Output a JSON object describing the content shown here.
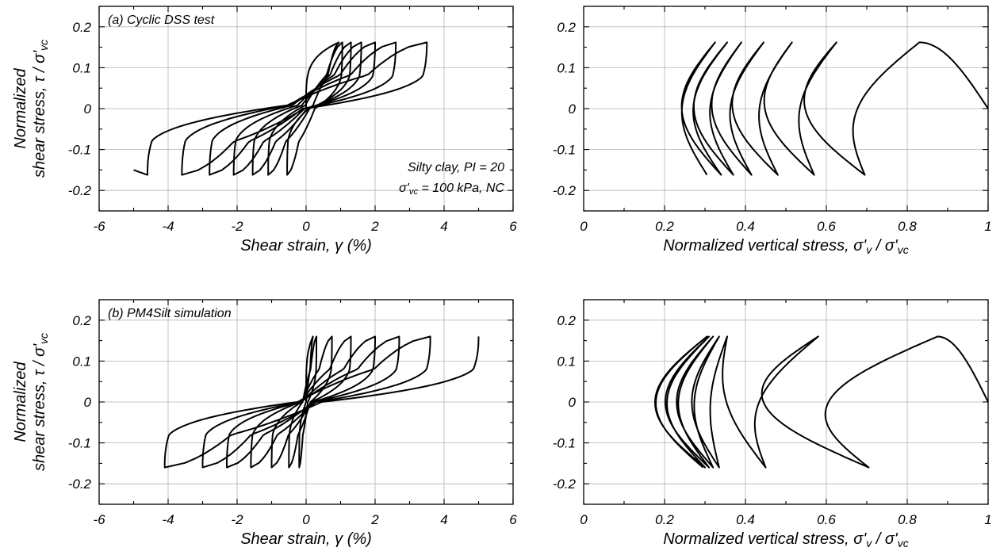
{
  "chart_data": [
    {
      "type": "line",
      "panel": "top-left",
      "title": "(a) Cyclic DSS test",
      "xlabel": "Shear strain, γ (%)",
      "ylabel": [
        "Normalized",
        "shear stress, τ / σ'vc"
      ],
      "xlim": [
        -6,
        6
      ],
      "ylim": [
        -0.25,
        0.25
      ],
      "xticks": [
        -6,
        -4,
        -2,
        0,
        2,
        4,
        6
      ],
      "xtick_labels": [
        "-6",
        "-4",
        "-2",
        "0",
        "2",
        "4",
        "6"
      ],
      "yticks": [
        -0.2,
        -0.1,
        0,
        0.1,
        0.2
      ],
      "ytick_labels": [
        "-0.2",
        "-0.1",
        "0",
        "0.1",
        "0.2"
      ],
      "grid": true,
      "annotation": [
        "Silty clay, PI = 20",
        "σ'vc = 100 kPa, NC"
      ],
      "series": [
        {
          "kind": "loops",
          "x0": 0,
          "tau": 0.162,
          "ymid": 0.02,
          "pos": [
            0.95,
            1.05,
            1.3,
            1.6,
            2.0,
            2.6,
            3.5
          ],
          "neg": [
            -0.55,
            -1.1,
            -1.55,
            -2.1,
            -2.8,
            -3.6,
            -4.6
          ],
          "end": -5.0
        }
      ]
    },
    {
      "type": "line",
      "panel": "top-right",
      "title": "",
      "xlabel": "Normalized vertical stress, σ'v / σ'vc",
      "ylabel": [],
      "xlim": [
        0,
        1
      ],
      "ylim": [
        -0.25,
        0.25
      ],
      "xticks": [
        0,
        0.2,
        0.4,
        0.6,
        0.8,
        1
      ],
      "xtick_labels": [
        "0",
        "0.2",
        "0.4",
        "0.6",
        "0.8",
        "1"
      ],
      "yticks": [
        -0.2,
        -0.1,
        0,
        0.1,
        0.2
      ],
      "ytick_labels": [
        "-0.2",
        "-0.1",
        "0",
        "0.1",
        "0.2"
      ],
      "grid": true,
      "series": [
        {
          "kind": "path",
          "tau": 0.162,
          "peaks_pos": [
            0.83,
            0.625,
            0.515,
            0.445,
            0.39,
            0.355,
            0.325
          ],
          "peaks_neg": [
            0.695,
            0.57,
            0.48,
            0.415,
            0.37,
            0.34,
            0.305
          ],
          "bulge_left": [
            0.6,
            0.5,
            0.41,
            0.34,
            0.295,
            0.255,
            0.225
          ],
          "start": 1.0
        }
      ]
    },
    {
      "type": "line",
      "panel": "bottom-left",
      "title": "(b) PM4Silt simulation",
      "xlabel": "Shear strain, γ (%)",
      "ylabel": [
        "Normalized",
        "shear stress, τ / σ'vc"
      ],
      "xlim": [
        -6,
        6
      ],
      "ylim": [
        -0.25,
        0.25
      ],
      "xticks": [
        -6,
        -4,
        -2,
        0,
        2,
        4,
        6
      ],
      "xtick_labels": [
        "-6",
        "-4",
        "-2",
        "0",
        "2",
        "4",
        "6"
      ],
      "yticks": [
        -0.2,
        -0.1,
        0,
        0.1,
        0.2
      ],
      "ytick_labels": [
        "-0.2",
        "-0.1",
        "0",
        "0.1",
        "0.2"
      ],
      "grid": true,
      "series": [
        {
          "kind": "loops",
          "x0": 0,
          "tau": 0.16,
          "ymid": 0.0,
          "pos": [
            0.2,
            0.3,
            0.75,
            1.3,
            2.0,
            2.7,
            3.6
          ],
          "neg": [
            -0.2,
            -0.5,
            -1.0,
            -1.6,
            -2.3,
            -3.0,
            -4.1
          ],
          "end": 5.0
        }
      ]
    },
    {
      "type": "line",
      "panel": "bottom-right",
      "title": "",
      "xlabel": "Normalized vertical stress, σ'v / σ'vc",
      "ylabel": [],
      "xlim": [
        0,
        1
      ],
      "ylim": [
        -0.25,
        0.25
      ],
      "xticks": [
        0,
        0.2,
        0.4,
        0.6,
        0.8,
        1
      ],
      "xtick_labels": [
        "0",
        "0.2",
        "0.4",
        "0.6",
        "0.8",
        "1"
      ],
      "yticks": [
        -0.2,
        -0.1,
        0,
        0.1,
        0.2
      ],
      "ytick_labels": [
        "-0.2",
        "-0.1",
        "0",
        "0.1",
        "0.2"
      ],
      "grid": true,
      "series": [
        {
          "kind": "path",
          "tau": 0.16,
          "peaks_pos": [
            0.875,
            0.58,
            0.355,
            0.335,
            0.32,
            0.31,
            0.305
          ],
          "peaks_neg": [
            0.705,
            0.45,
            0.335,
            0.32,
            0.31,
            0.3,
            0.295
          ],
          "bulge_left": [
            0.5,
            0.36,
            0.3,
            0.26,
            0.22,
            0.19,
            0.16
          ],
          "start": 1.0
        }
      ]
    }
  ]
}
